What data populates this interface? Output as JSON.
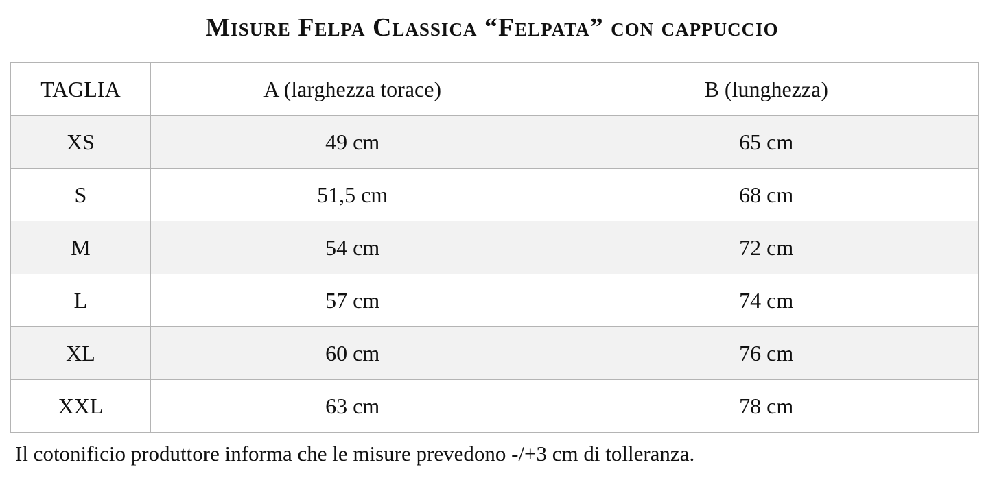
{
  "title": "Misure Felpa Classica “Felpata” con cappuccio",
  "table": {
    "headers": [
      "TAGLIA",
      "A (larghezza torace)",
      "B (lunghezza)"
    ],
    "rows": [
      [
        "XS",
        "49 cm",
        "65 cm"
      ],
      [
        "S",
        "51,5 cm",
        "68 cm"
      ],
      [
        "M",
        "54 cm",
        "72 cm"
      ],
      [
        "L",
        "57 cm",
        "74 cm"
      ],
      [
        "XL",
        "60 cm",
        "76 cm"
      ],
      [
        "XXL",
        "63 cm",
        "78 cm"
      ]
    ]
  },
  "note": "Il cotonificio produttore informa che le misure prevedono -/+3 cm di tolleranza.",
  "colors": {
    "shaded_row": "#f2f2f2",
    "border": "#b4b4b4"
  }
}
